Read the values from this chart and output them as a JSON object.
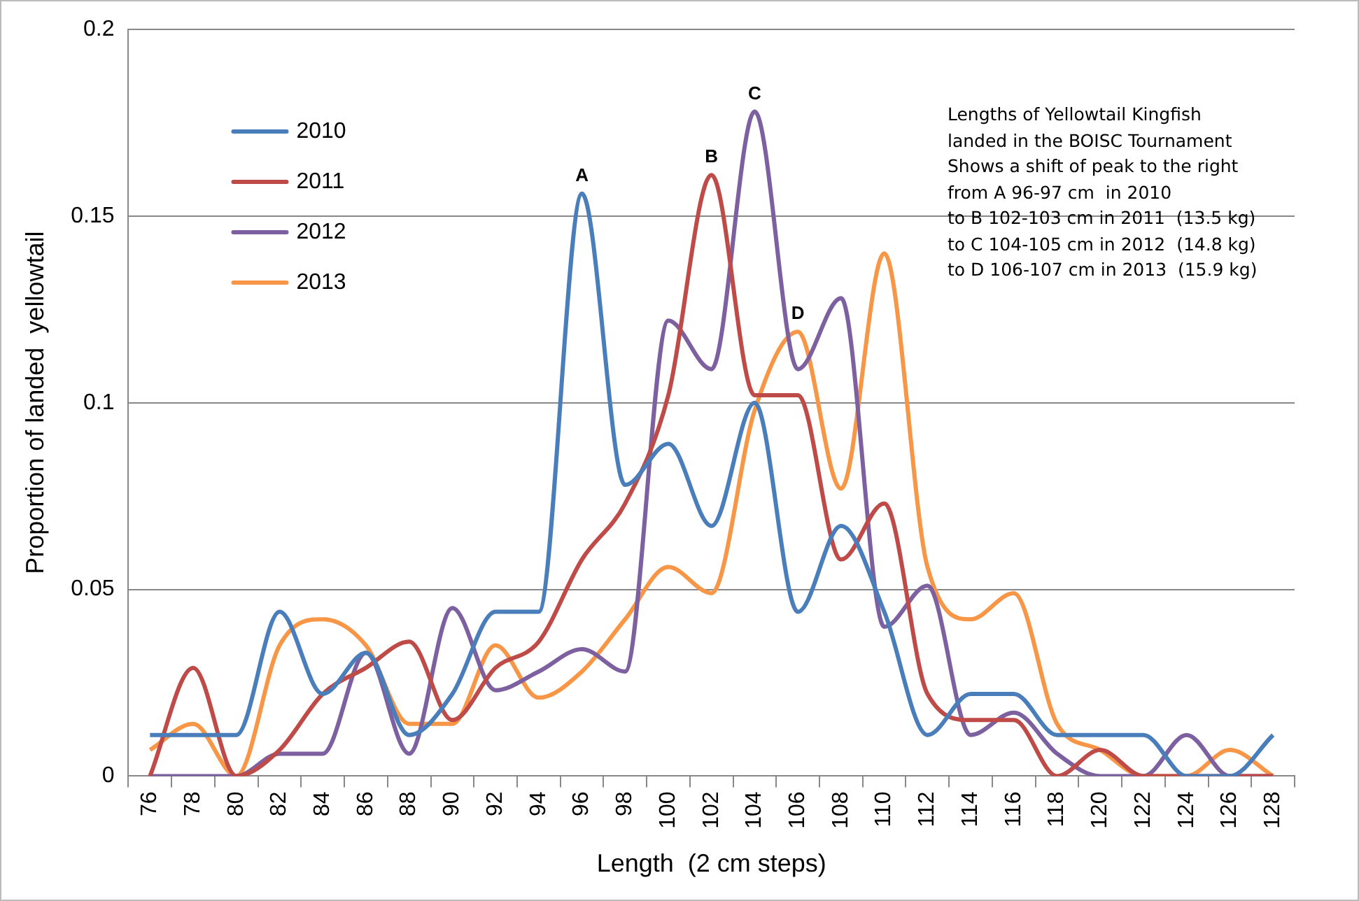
{
  "chart_data": {
    "type": "line",
    "xlabel": "Length  (2 cm steps)",
    "ylabel": "Proportion of landed  yellowtail",
    "categories": [
      "76",
      "78",
      "80",
      "82",
      "84",
      "86",
      "88",
      "90",
      "92",
      "94",
      "96",
      "98",
      "100",
      "102",
      "104",
      "106",
      "108",
      "110",
      "112",
      "114",
      "116",
      "118",
      "120",
      "122",
      "124",
      "126",
      "128"
    ],
    "series": [
      {
        "name": "2010",
        "color": "#4a7ebb",
        "values": [
          0.011,
          0.011,
          0.011,
          0.044,
          0.022,
          0.033,
          0.011,
          0.022,
          0.044,
          0.044,
          0.156,
          0.078,
          0.089,
          0.067,
          0.1,
          0.044,
          0.067,
          0.044,
          0.011,
          0.022,
          0.022,
          0.011,
          0.011,
          0.011,
          0,
          0,
          0.011
        ]
      },
      {
        "name": "2011",
        "color": "#be4b48",
        "values": [
          0,
          0.029,
          0,
          0.007,
          0.022,
          0.029,
          0.036,
          0.015,
          0.029,
          0.036,
          0.058,
          0.073,
          0.102,
          0.161,
          0.102,
          0.102,
          0.058,
          0.073,
          0.022,
          0.015,
          0.015,
          0,
          0.007,
          0,
          0,
          0,
          0
        ]
      },
      {
        "name": "2012",
        "color": "#7d60a0",
        "values": [
          0,
          0,
          0,
          0.006,
          0.006,
          0.033,
          0.006,
          0.045,
          0.023,
          0.028,
          0.034,
          0.028,
          0.122,
          0.109,
          0.178,
          0.109,
          0.128,
          0.04,
          0.051,
          0.011,
          0.017,
          0.006,
          0,
          0,
          0.011,
          0,
          0
        ]
      },
      {
        "name": "2013",
        "color": "#f79646",
        "values": [
          0.007,
          0.014,
          0,
          0.035,
          0.042,
          0.035,
          0.014,
          0.014,
          0.035,
          0.021,
          0.028,
          0.042,
          0.056,
          0.049,
          0.098,
          0.119,
          0.077,
          0.14,
          0.056,
          0.042,
          0.049,
          0.014,
          0.007,
          0,
          0,
          0.007,
          0
        ]
      }
    ],
    "ylim": [
      0,
      0.2
    ],
    "yticks": [
      0,
      0.05,
      0.1,
      0.15,
      0.2
    ],
    "grid": "y",
    "legend": "top left",
    "marker": "none",
    "line_style": "solid",
    "annotations": [
      {
        "text": "A",
        "x": "96",
        "y": 0.156
      },
      {
        "text": "B",
        "x": "102",
        "y": 0.161
      },
      {
        "text": "C",
        "x": "104",
        "y": 0.178
      },
      {
        "text": "D",
        "x": "106",
        "y": 0.119
      },
      "Lengths of Yellowtail Kingfish\nlanded in the BOISC Tournament\nShows a shift of peak to the right\nfrom A 96-97 cm  in 2010\nto B 102-103 cm in 2011  (13.5 kg)\nto C 104-105 cm in 2012  (14.8 kg)\nto D 106-107 cm in 2013  (15.9 kg)"
    ]
  }
}
